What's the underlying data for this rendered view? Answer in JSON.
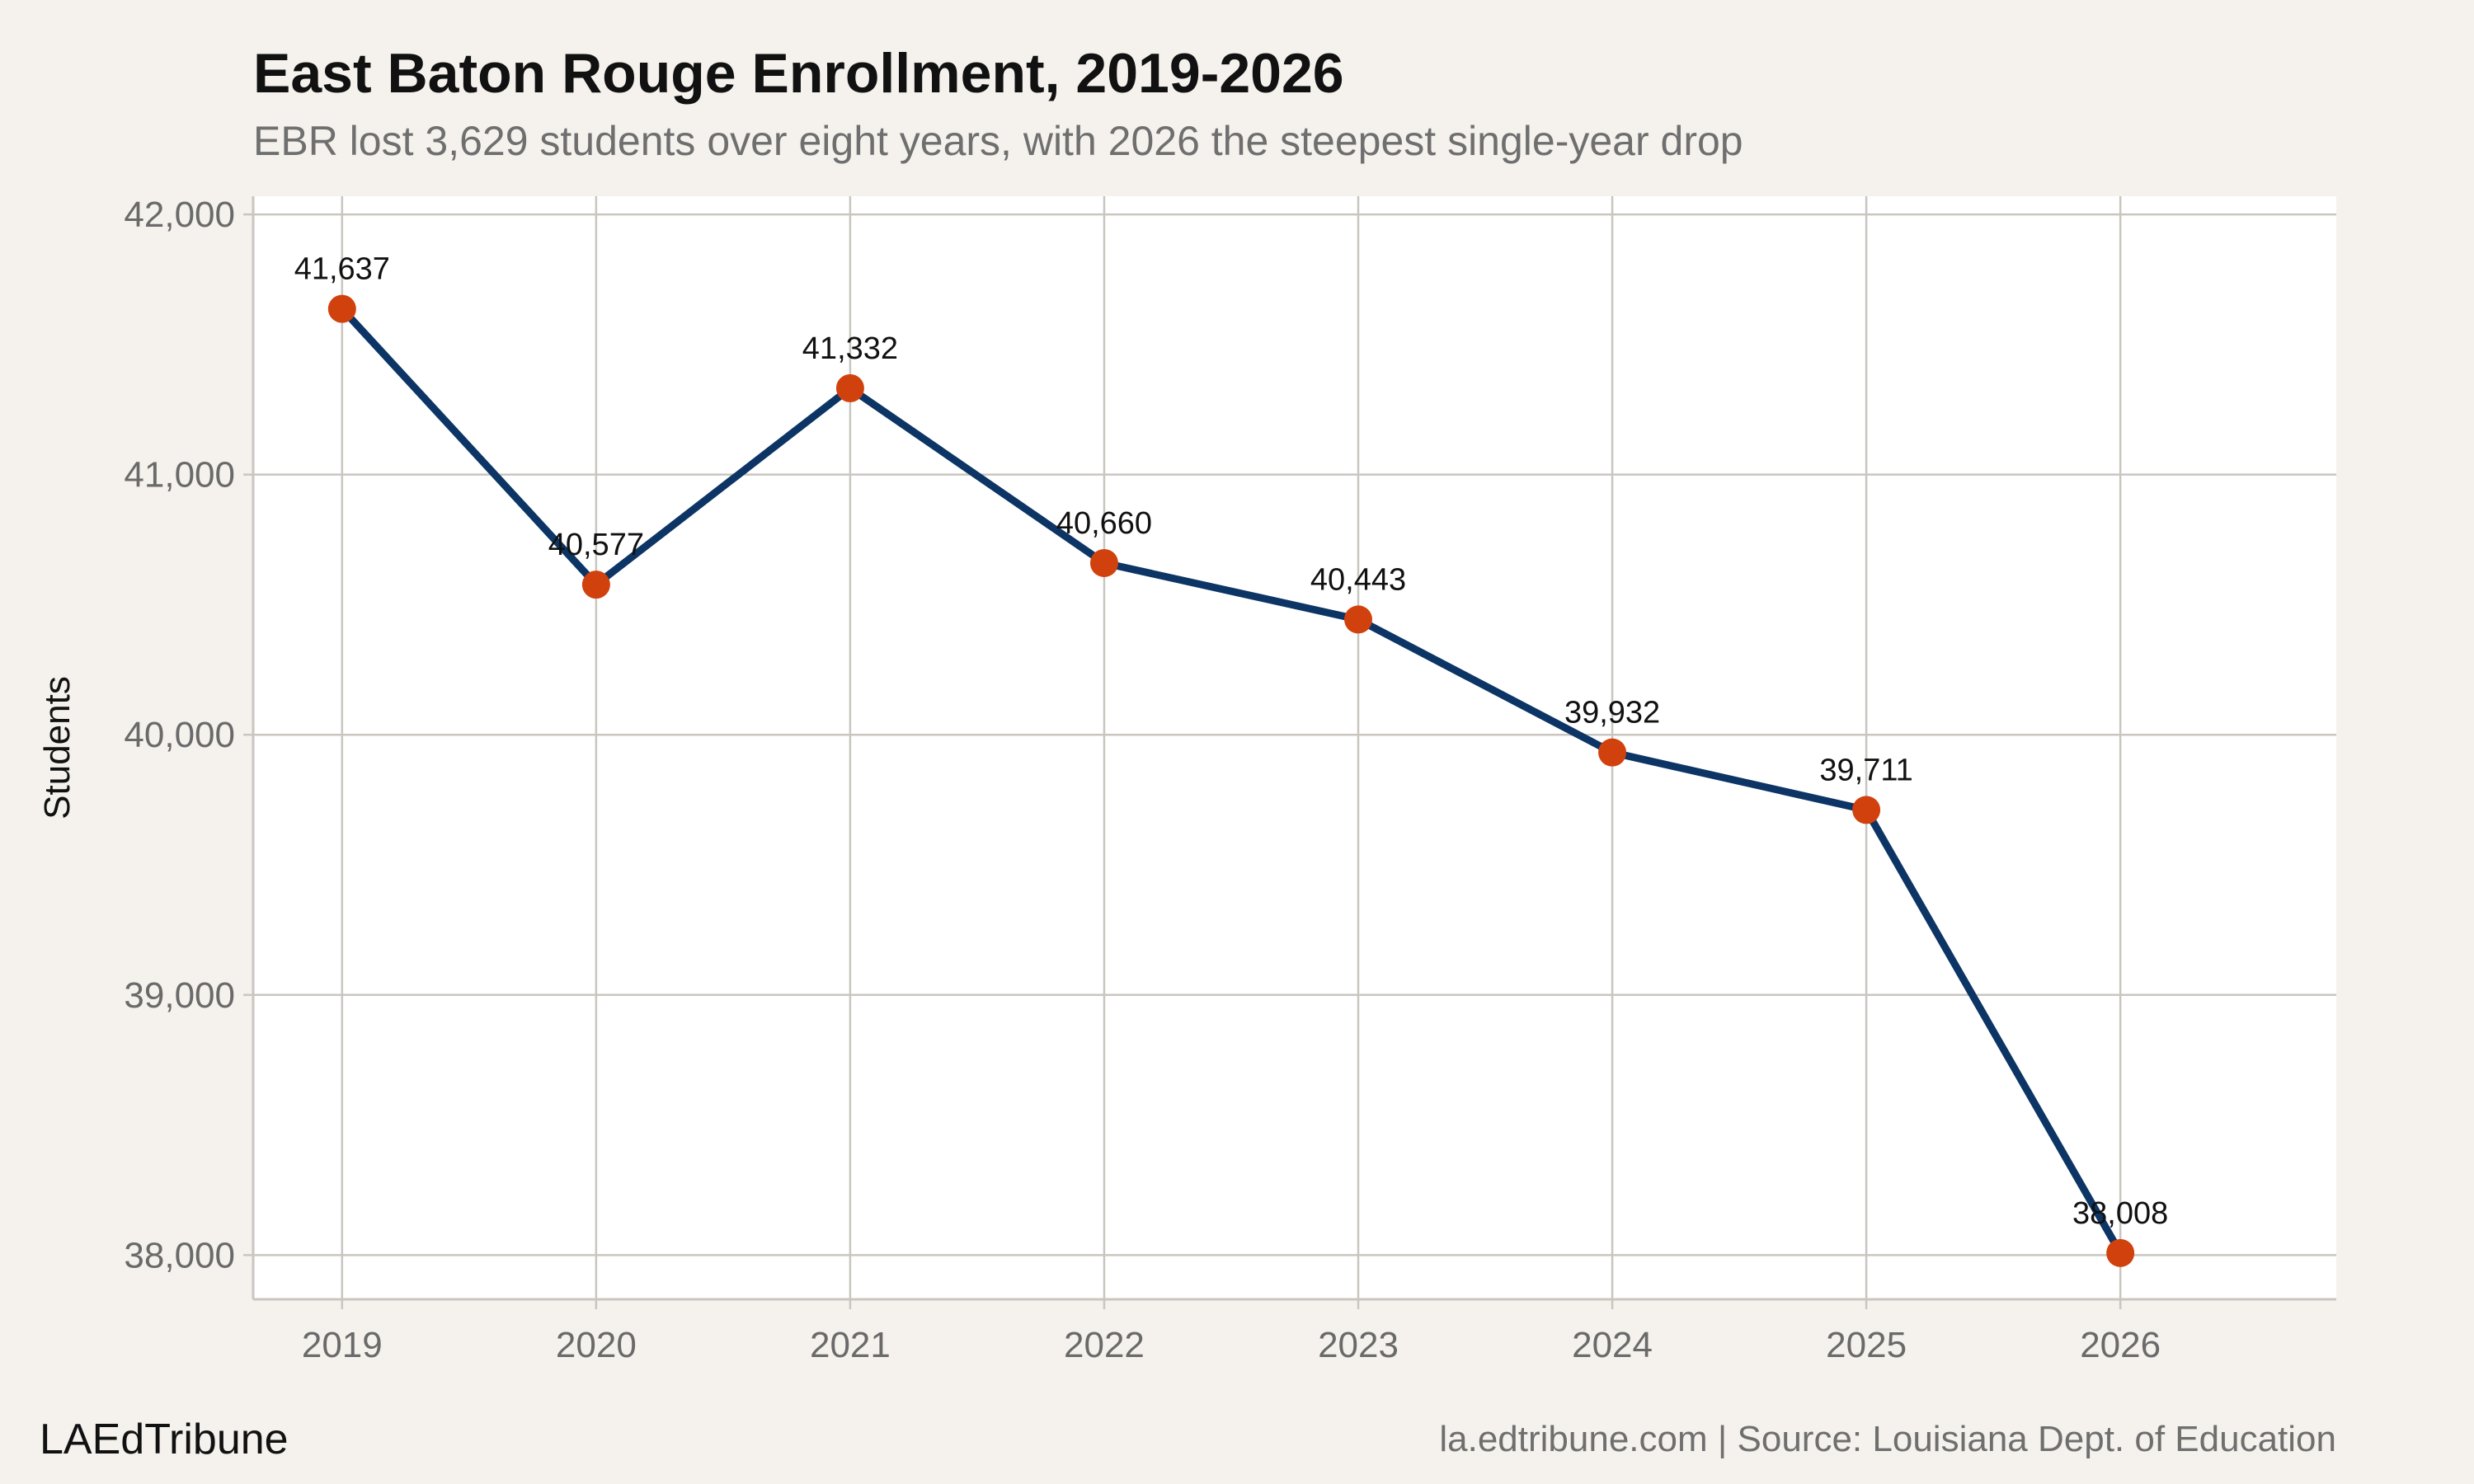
{
  "chart_data": {
    "type": "line",
    "title": "East Baton Rouge Enrollment, 2019-2026",
    "subtitle": "EBR lost 3,629 students over eight years, with 2026 the steepest single-year drop",
    "xlabel": "",
    "ylabel": "Students",
    "x": [
      "2019",
      "2020",
      "2021",
      "2022",
      "2023",
      "2024",
      "2025",
      "2026"
    ],
    "series": [
      {
        "values": [
          41637,
          40577,
          41332,
          40660,
          40443,
          39932,
          39711,
          38008
        ],
        "data_labels": [
          "41,637",
          "40,577",
          "41,332",
          "40,660",
          "40,443",
          "39,932",
          "39,711",
          "38,008"
        ]
      }
    ],
    "ylim": [
      37830,
      42070
    ],
    "yticks": [
      38000,
      39000,
      40000,
      41000,
      42000
    ],
    "ytick_labels": [
      "38,000",
      "39,000",
      "40,000",
      "41,000",
      "42,000"
    ],
    "xlim": [
      2018.65,
      2026.85
    ],
    "grid": true,
    "legend": "none",
    "colors": {
      "line": "#0c3565",
      "marker": "#d1410d",
      "background": "#f5f2ed",
      "panel": "#ffffff",
      "grid": "#c9c6c0"
    }
  },
  "footer": {
    "brand": "LAEdTribune",
    "source": "la.edtribune.com | Source: Louisiana Dept. of Education"
  }
}
